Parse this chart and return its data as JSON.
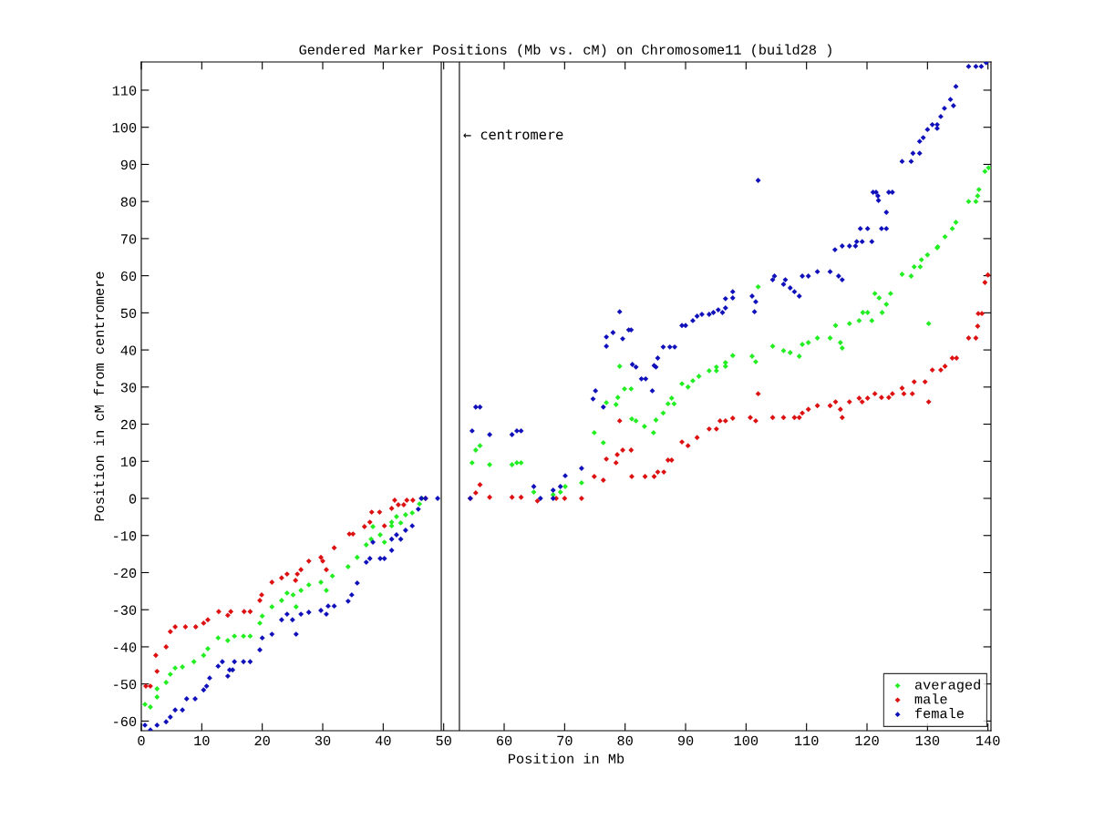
{
  "chart_data": {
    "type": "scatter",
    "title": "Gendered Marker Positions (Mb vs. cM) on Chromosome11 (build28 )",
    "xlabel": "Position in Mb",
    "ylabel": "Position in cM from centromere",
    "xlim": [
      0,
      140.5
    ],
    "ylim": [
      -62.6,
      117.6
    ],
    "xticks": [
      0,
      10,
      20,
      30,
      40,
      50,
      60,
      70,
      80,
      90,
      100,
      110,
      120,
      130,
      140
    ],
    "yticks": [
      -60,
      -50,
      -40,
      -30,
      -20,
      -10,
      0,
      10,
      20,
      30,
      40,
      50,
      60,
      70,
      80,
      90,
      100,
      110
    ],
    "grid": false,
    "legend": "bottom right",
    "marker": "diamond",
    "ref_lines": [
      {
        "axis": "x",
        "value": 49.6,
        "color": "#000000"
      },
      {
        "axis": "x",
        "value": 52.6,
        "color": "#000000"
      }
    ],
    "annotations": [
      "← centromere"
    ],
    "series": [
      {
        "name": "averaged",
        "color": "#22ee22",
        "x": [
          0.6,
          1.5,
          2.6,
          2.6,
          4.1,
          4.8,
          5.6,
          6.8,
          8.7,
          10.3,
          11,
          12.7,
          14.3,
          15.4,
          16.9,
          18,
          19.6,
          20,
          21.6,
          23.2,
          24.1,
          25.1,
          26.4,
          25.6,
          27.7,
          29.7,
          30.6,
          31.6,
          34.2,
          35.7,
          37.2,
          38,
          38.3,
          39.5,
          40.2,
          41.4,
          41.4,
          42.2,
          42.9,
          43.7,
          44.8,
          46,
          46.4,
          54.7,
          55.3,
          56,
          57.6,
          61.3,
          62.1,
          62.8,
          64.9,
          68.1,
          69.3,
          70.1,
          72.8,
          74.9,
          76.4,
          76.9,
          78.5,
          78.8,
          79.9,
          81,
          79.1,
          81.1,
          81.8,
          83.2,
          84.7,
          85.1,
          86.3,
          87.1,
          87.7,
          88.1,
          89.4,
          90.4,
          91.2,
          92.2,
          93.9,
          95.1,
          96.6,
          95.1,
          96.6,
          97.8,
          101,
          101.6,
          102,
          104.4,
          106.2,
          107.3,
          108.8,
          109.3,
          110.3,
          111.8,
          113.9,
          114.8,
          115.6,
          115.9,
          117.1,
          118.7,
          119.3,
          120.1,
          120.8,
          121.3,
          122,
          122.5,
          123.2,
          123.9,
          125.8,
          127.3,
          127.8,
          128.8,
          129,
          130,
          130.2,
          131.6,
          131.7,
          132.9,
          134.1,
          134.7,
          136.8,
          138,
          138.3,
          138.5,
          139.5,
          140.1
        ],
        "values": [
          -55.5,
          -56.2,
          -53.5,
          -51.3,
          -49.6,
          -47.4,
          -45.7,
          -45.4,
          -44,
          -42.3,
          -40.5,
          -37.6,
          -38.3,
          -37.1,
          -37.1,
          -37.1,
          -33.6,
          -31.7,
          -29.2,
          -27.5,
          -25.5,
          -26,
          -24.8,
          -29.2,
          -23.3,
          -22.6,
          -24.8,
          -20.9,
          -18.4,
          -15.9,
          -12.5,
          -11,
          -7.6,
          -9.8,
          -11.8,
          -7.4,
          -6.4,
          -4.9,
          -6.6,
          -4.4,
          -3.9,
          -1.5,
          0,
          9.6,
          13,
          14.2,
          9.1,
          9.1,
          9.6,
          9.6,
          1.7,
          1,
          1.7,
          3.2,
          4.2,
          17.7,
          15,
          25.8,
          25.3,
          27.2,
          29.5,
          29.5,
          35.6,
          21.4,
          20.9,
          19.4,
          17.7,
          21.1,
          23,
          25.5,
          27,
          25.5,
          30.9,
          30,
          31.7,
          32.9,
          34.4,
          35.4,
          35.6,
          34.4,
          36.6,
          38.5,
          38.3,
          36.8,
          57,
          41,
          39.8,
          39.3,
          38.3,
          41.5,
          42,
          43.2,
          43.2,
          46.6,
          42,
          40.5,
          47.1,
          47.9,
          50.1,
          50.1,
          47.9,
          55.2,
          54,
          50.1,
          52.3,
          55.2,
          60.4,
          59.9,
          62.4,
          62.4,
          64.3,
          65.6,
          47.1,
          67.5,
          67.8,
          70.5,
          72.7,
          74.4,
          80,
          80,
          81.5,
          83.2,
          88.1,
          89.1
        ]
      },
      {
        "name": "male",
        "color": "#dd1111",
        "x": [
          0.75,
          1.5,
          2.6,
          2.4,
          4.1,
          4.8,
          5.6,
          7.3,
          9,
          10.3,
          11,
          12.8,
          14.8,
          14.3,
          17,
          18,
          19.6,
          19.9,
          21.6,
          23.2,
          24.1,
          25.8,
          25.5,
          26.4,
          27.7,
          29.7,
          30,
          30.6,
          31.9,
          34.4,
          35,
          36.9,
          37.8,
          38.1,
          39.4,
          40.2,
          41.4,
          42.5,
          43.4,
          41.9,
          43.9,
          44.9,
          47,
          54.4,
          55.3,
          56,
          57.6,
          61.3,
          62.8,
          65.5,
          68.6,
          70,
          72.8,
          74.9,
          76.4,
          76.9,
          78.5,
          78.7,
          79.6,
          81,
          79.1,
          81.1,
          83.3,
          84.8,
          85.4,
          86.4,
          87.1,
          87.7,
          89.4,
          90.4,
          91.9,
          93.9,
          95.1,
          95.7,
          96.6,
          97.8,
          100.7,
          101.6,
          102,
          104.4,
          106.2,
          108,
          108.8,
          109.3,
          110.3,
          111.8,
          113.9,
          114.8,
          115.6,
          115.9,
          117.1,
          118.7,
          119.2,
          120.1,
          121.3,
          122.4,
          123.6,
          124.2,
          125.8,
          126.1,
          127.5,
          127.8,
          129.6,
          130.2,
          130.8,
          132.2,
          132.9,
          134.1,
          134.8,
          136.8,
          138,
          138.3,
          138.4,
          139,
          139.5,
          140
        ],
        "values": [
          -50.6,
          -50.6,
          -46.6,
          -42.3,
          -40,
          -35.9,
          -34.6,
          -34.6,
          -34.6,
          -33.6,
          -32.7,
          -30.5,
          -30.5,
          -31.5,
          -30.5,
          -30.5,
          -27.5,
          -26,
          -22.6,
          -21.4,
          -20.4,
          -20.4,
          -22.1,
          -19.2,
          -16.9,
          -15.9,
          -16.9,
          -19.2,
          -13.3,
          -9.6,
          -9.6,
          -7.6,
          -6.4,
          -3.7,
          -3.7,
          -7.4,
          -2.7,
          -1.7,
          -1.7,
          -0.5,
          -0.5,
          -0.5,
          0,
          0,
          1.5,
          3.7,
          0.3,
          0.3,
          0.3,
          -0.7,
          0,
          0,
          0,
          5.9,
          4.9,
          10.6,
          9.6,
          11.8,
          13,
          13,
          20.9,
          5.9,
          5.9,
          5.9,
          7.1,
          7.1,
          10.3,
          10.3,
          15.2,
          14.2,
          16.4,
          18.7,
          18.7,
          20.9,
          20.9,
          21.6,
          21.8,
          20.9,
          28.2,
          21.8,
          21.8,
          21.8,
          21.8,
          23,
          24,
          25,
          25,
          26,
          24,
          21.8,
          26,
          27,
          26,
          27,
          28.2,
          27.2,
          27.2,
          28.2,
          29.7,
          28.2,
          28.2,
          31.4,
          31.4,
          26,
          34.6,
          34.6,
          35.6,
          37.8,
          37.8,
          43.2,
          43.2,
          46.4,
          49.8,
          49.8,
          58.2,
          60.2
        ]
      },
      {
        "name": "female",
        "color": "#1111bb",
        "x": [
          0.6,
          1.5,
          2.6,
          4.1,
          4.8,
          5.6,
          6.8,
          7.5,
          8.9,
          10.3,
          10.8,
          11.3,
          12.7,
          13.4,
          14.3,
          14.6,
          15.1,
          15.4,
          16.9,
          18,
          19.6,
          20,
          21.6,
          23.2,
          24.1,
          25,
          25.6,
          26.4,
          27.7,
          29.7,
          30.6,
          30.9,
          31.9,
          34.2,
          34.8,
          35.7,
          37.2,
          37.8,
          38.3,
          39.5,
          40.2,
          41.4,
          41.4,
          42.2,
          42.9,
          43.7,
          44.8,
          45.8,
          46.3,
          47,
          49,
          54.4,
          54.7,
          55.3,
          56,
          57.6,
          61.3,
          62.1,
          62.8,
          64.9,
          66,
          68.1,
          68.1,
          69.3,
          70.1,
          72.8,
          74.7,
          75.1,
          76.4,
          76.9,
          76.9,
          78,
          79.1,
          79.6,
          80.6,
          81,
          81.2,
          81.8,
          82.7,
          83.4,
          84.5,
          85.1,
          84.8,
          85.4,
          86.3,
          87.4,
          88.2,
          89.4,
          90,
          91.2,
          91.9,
          92.7,
          93.9,
          94.6,
          95.4,
          96.1,
          96.6,
          96.6,
          97.8,
          97.8,
          101,
          101.6,
          101.4,
          102,
          104.4,
          104.7,
          106.2,
          106.5,
          107.3,
          108,
          108.8,
          109.3,
          110.3,
          111.8,
          113.9,
          115.3,
          115.9,
          114.7,
          115.9,
          117.1,
          118.1,
          118.3,
          119.2,
          118.9,
          120.1,
          120.8,
          121,
          121.5,
          121.8,
          121.9,
          122.4,
          123.2,
          123.2,
          123.6,
          124.2,
          125.8,
          127.3,
          127.6,
          128.7,
          128.7,
          129.3,
          130,
          130.8,
          131.6,
          131.6,
          132.2,
          132.8,
          133.8,
          134.3,
          134.7,
          136.8,
          138,
          138.9,
          139.7
        ],
        "values": [
          -61.1,
          -62.4,
          -61.1,
          -60.2,
          -58.9,
          -57,
          -57,
          -54,
          -54,
          -51.6,
          -50.6,
          -48.4,
          -45.2,
          -44,
          -47.9,
          -46.2,
          -46.2,
          -44,
          -44,
          -44,
          -40.8,
          -37.6,
          -36.6,
          -32.7,
          -31.2,
          -32.7,
          -36.6,
          -31.2,
          -30.7,
          -30.2,
          -31.2,
          -29,
          -29,
          -27.7,
          -26,
          -22.8,
          -17.2,
          -16.2,
          -11.8,
          -16.2,
          -16.2,
          -14,
          -11,
          -9.8,
          -11,
          -8.6,
          -7.4,
          -2.9,
          0,
          0,
          0,
          0,
          18.2,
          24.6,
          24.6,
          17.2,
          17.2,
          18.2,
          18.2,
          3.2,
          0,
          0,
          2.2,
          3.2,
          6.1,
          8.1,
          26.8,
          29,
          24.6,
          41,
          43.5,
          44.7,
          50.3,
          43,
          45.4,
          45.4,
          36.1,
          35.4,
          32.2,
          32.2,
          29,
          35.4,
          35.8,
          37.8,
          40.8,
          40.8,
          40.8,
          46.6,
          46.6,
          47.9,
          49.1,
          49.6,
          49.6,
          50.1,
          50.8,
          50.1,
          51.3,
          53.8,
          55.7,
          54,
          54.5,
          53,
          50.3,
          85.7,
          58.9,
          59.9,
          57.7,
          58.9,
          56.7,
          55.7,
          54.5,
          59.9,
          59.9,
          61.1,
          61.1,
          59.9,
          58.9,
          67,
          68,
          68,
          68,
          69.2,
          69.2,
          72.7,
          72.7,
          69.2,
          82.5,
          82.5,
          81.5,
          80.3,
          72.7,
          72.7,
          77.1,
          82.5,
          82.5,
          90.8,
          90.8,
          93,
          93,
          96.2,
          97.2,
          99.4,
          100.7,
          100.7,
          99.7,
          102.9,
          105.1,
          107.5,
          105.8,
          111,
          116.4,
          116.4,
          116.4,
          117.4
        ]
      }
    ]
  }
}
